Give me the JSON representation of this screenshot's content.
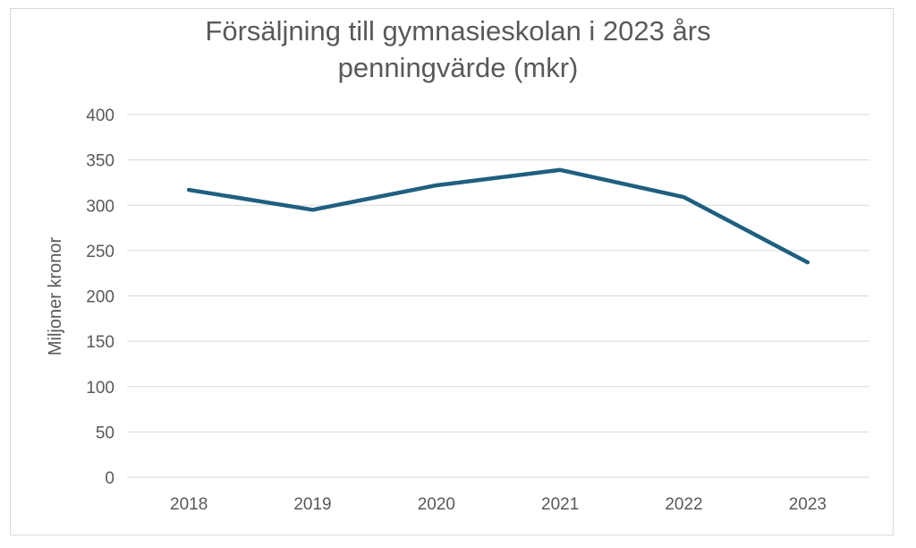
{
  "chart_data": {
    "type": "line",
    "title_lines": [
      "Försäljning till gymnasieskolan i 2023 års",
      "penningvärde (mkr)"
    ],
    "xlabel": "",
    "ylabel": "Miljoner kronor",
    "categories": [
      "2018",
      "2019",
      "2020",
      "2021",
      "2022",
      "2023"
    ],
    "series": [
      {
        "values": [
          317,
          295,
          322,
          339,
          309,
          237
        ],
        "color": "#1f5f7f"
      }
    ],
    "ylim": [
      0,
      400
    ],
    "yticks": [
      "0",
      "50",
      "100",
      "150",
      "200",
      "250",
      "300",
      "350",
      "400"
    ],
    "grid": true,
    "legend": "none"
  }
}
